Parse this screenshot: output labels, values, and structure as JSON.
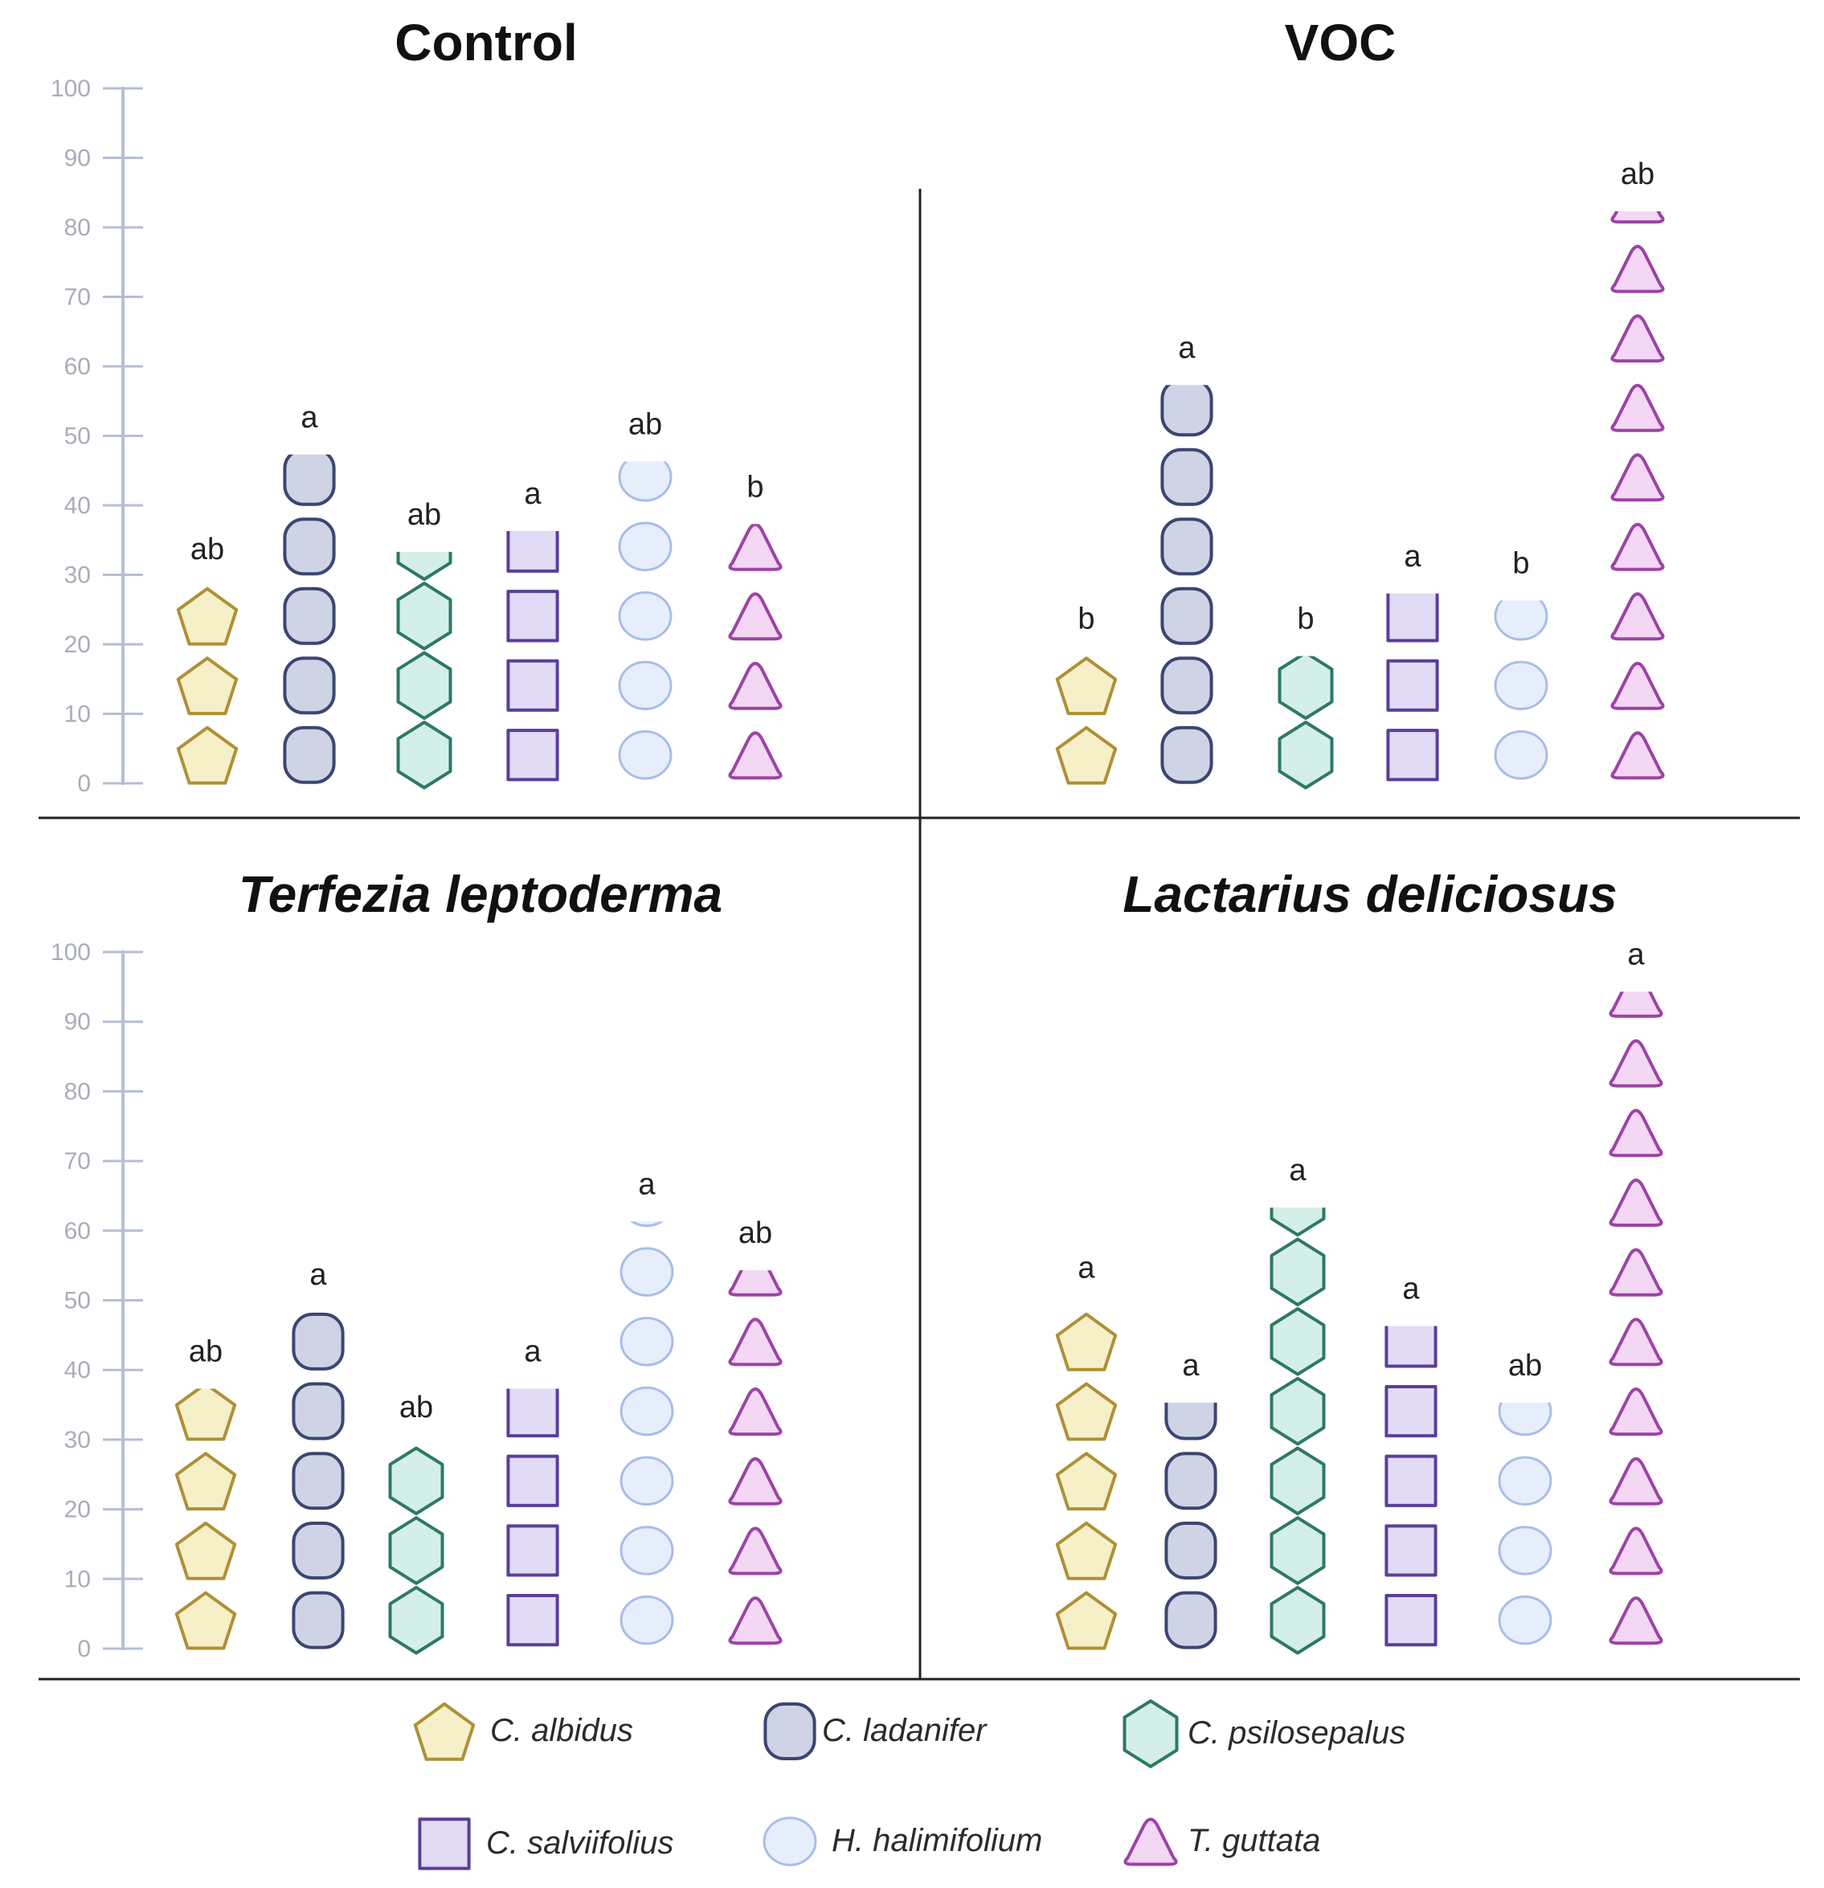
{
  "colors": {
    "axis": "#b6bed6",
    "tick_text": "#a9adb8",
    "divider": "#222222"
  },
  "species": [
    {
      "name": "C. albidus",
      "shape": "pentagon",
      "fill": "#f6f0c8",
      "stroke": "#ae9036"
    },
    {
      "name": "C. ladanifer",
      "shape": "rounded-square",
      "fill": "#ced4e6",
      "stroke": "#3b4671"
    },
    {
      "name": "C. psilosepalus",
      "shape": "hexagon",
      "fill": "#d3efe8",
      "stroke": "#2e7868"
    },
    {
      "name": "C. salviifolius",
      "shape": "square",
      "fill": "#e2dbf5",
      "stroke": "#5a3f98"
    },
    {
      "name": "H. halimifolium",
      "shape": "ellipse",
      "fill": "#e6eefb",
      "stroke": "#a9bde6"
    },
    {
      "name": "T. guttata",
      "shape": "triangle",
      "fill": "#f3d7f4",
      "stroke": "#9c43a5"
    }
  ],
  "chart_data": [
    {
      "type": "pictograph",
      "title": "Control",
      "title_italic": false,
      "ylim": [
        0,
        100
      ],
      "yticks": [
        "0",
        "10",
        "20",
        "30",
        "40",
        "50",
        "60",
        "70",
        "80",
        "90",
        "100"
      ],
      "categories": [
        "C. albidus",
        "C. ladanifer",
        "C. psilosepalus",
        "C. salviifolius",
        "H. halimifolium",
        "T. guttata"
      ],
      "values": [
        29,
        48,
        34,
        37,
        47,
        38
      ],
      "letters": [
        "ab",
        "a",
        "ab",
        "a",
        "ab",
        "b"
      ]
    },
    {
      "type": "pictograph",
      "title": "VOC",
      "title_italic": false,
      "ylim": [
        0,
        100
      ],
      "yticks": [],
      "categories": [
        "C. albidus",
        "C. ladanifer",
        "C. psilosepalus",
        "C. salviifolius",
        "H. halimifolium",
        "T. guttata"
      ],
      "values": [
        19,
        58,
        19,
        28,
        27,
        83
      ],
      "letters": [
        "b",
        "a",
        "b",
        "a",
        "b",
        "ab"
      ]
    },
    {
      "type": "pictograph",
      "title": "Terfezia leptoderma",
      "title_italic": true,
      "ylim": [
        0,
        100
      ],
      "yticks": [
        "0",
        "10",
        "20",
        "30",
        "40",
        "50",
        "60",
        "70",
        "80",
        "90",
        "100"
      ],
      "categories": [
        "C. albidus",
        "C. ladanifer",
        "C. psilosepalus",
        "C. salviifolius",
        "H. halimifolium",
        "T. guttata"
      ],
      "values": [
        38,
        49,
        30,
        38,
        62,
        55
      ],
      "letters": [
        "ab",
        "a",
        "ab",
        "a",
        "a",
        "ab"
      ]
    },
    {
      "type": "pictograph",
      "title": "Lactarius deliciosus",
      "title_italic": true,
      "ylim": [
        0,
        100
      ],
      "yticks": [],
      "categories": [
        "C. albidus",
        "C. ladanifer",
        "C. psilosepalus",
        "C. salviifolius",
        "H. halimifolium",
        "T. guttata"
      ],
      "values": [
        50,
        36,
        64,
        47,
        36,
        95
      ],
      "letters": [
        "a",
        "a",
        "a",
        "a",
        "ab",
        "a"
      ]
    }
  ]
}
